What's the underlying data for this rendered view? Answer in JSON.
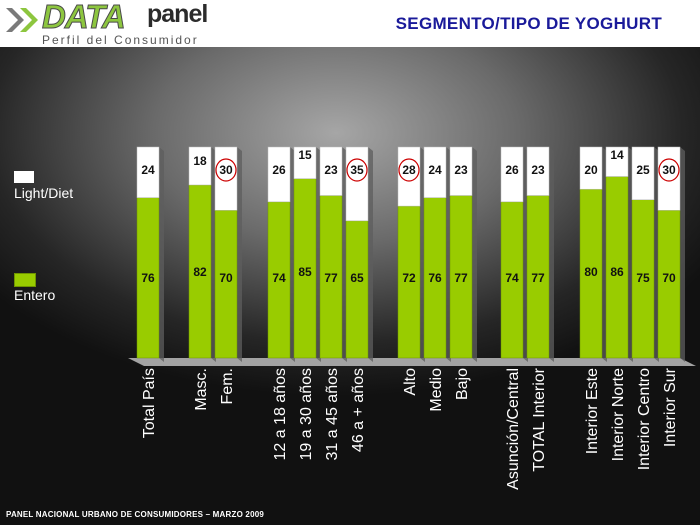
{
  "header": {
    "logo_data": "DATA",
    "logo_panel": "panel",
    "logo_subtitle": "Perfil del Consumidor",
    "title": "SEGMENTO/TIPO DE YOGHURT"
  },
  "legend": [
    {
      "label": "Light/Diet",
      "color": "#ffffff"
    },
    {
      "label": "Entero",
      "color": "#99cc00"
    }
  ],
  "footer": "PANEL NACIONAL URBANO DE CONSUMIDORES – MARZO 2009",
  "colors": {
    "entero": "#99cc00",
    "light": "#ffffff",
    "highlight_circle": "#cc0000"
  },
  "chart_data": {
    "type": "bar",
    "stacked": true,
    "percent_stacked": true,
    "categories": [
      "Total País",
      "Masc.",
      "Fem.",
      "12 a 18 años",
      "19 a 30 años",
      "31 a 45 años",
      "46 a + años",
      "Alto",
      "Medio",
      "Bajo",
      "Asunción/Central",
      "TOTAL Interior",
      "Interior Este",
      "Interior Norte",
      "Interior Centro",
      "Interior Sur"
    ],
    "series": [
      {
        "name": "Entero",
        "values": [
          76,
          82,
          70,
          74,
          85,
          77,
          65,
          72,
          76,
          77,
          74,
          77,
          80,
          86,
          75,
          70
        ]
      },
      {
        "name": "Light/Diet",
        "values": [
          24,
          18,
          30,
          26,
          15,
          23,
          35,
          28,
          24,
          23,
          26,
          23,
          20,
          14,
          25,
          30
        ]
      }
    ],
    "highlighted_light_values": [
      "Fem.",
      "46 a + años",
      "Alto",
      "Interior Sur"
    ],
    "ylim": [
      0,
      100
    ],
    "legend_position": "left",
    "grid": false
  }
}
